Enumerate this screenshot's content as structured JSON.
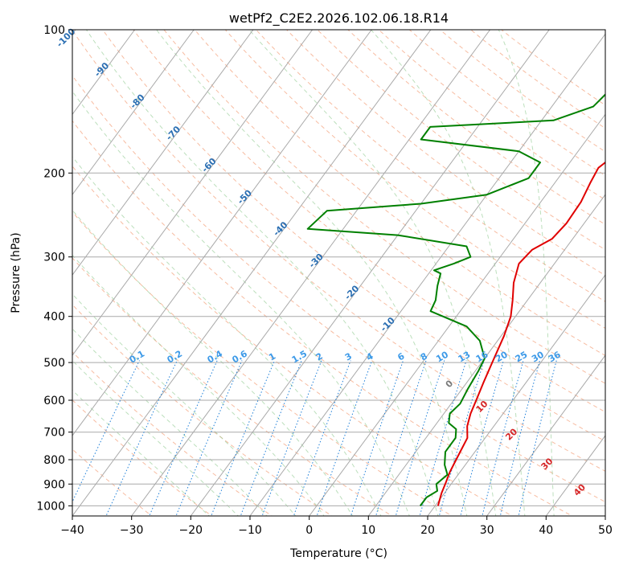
{
  "chart_data": {
    "type": "line",
    "title": "wetPf2_C2E2.2026.102.06.18.R14",
    "xlabel": "Temperature (°C)",
    "ylabel": "Pressure (hPa)",
    "xlim": [
      -40,
      50
    ],
    "ylim": [
      1050,
      100
    ],
    "y_scale": "log",
    "grid": true,
    "x_ticks": [
      -40,
      -30,
      -20,
      -10,
      0,
      10,
      20,
      30,
      40,
      50
    ],
    "y_ticks": [
      1000,
      900,
      800,
      700,
      600,
      500,
      400,
      300,
      200,
      100
    ],
    "series": [
      {
        "color": "#e00000",
        "points": [
          [
            20.5,
            1000
          ],
          [
            20.0,
            970
          ],
          [
            19.5,
            940
          ],
          [
            19.0,
            900
          ],
          [
            18.3,
            850
          ],
          [
            17.8,
            800
          ],
          [
            17.0,
            720
          ],
          [
            15.5,
            680
          ],
          [
            14.5,
            640
          ],
          [
            13.8,
            600
          ],
          [
            12.8,
            550
          ],
          [
            11.8,
            500
          ],
          [
            10.5,
            440
          ],
          [
            9.2,
            400
          ],
          [
            7.5,
            370
          ],
          [
            5.5,
            340
          ],
          [
            4.0,
            310
          ],
          [
            4.5,
            290
          ],
          [
            6.5,
            275
          ],
          [
            7.0,
            255
          ],
          [
            6.8,
            230
          ],
          [
            6.0,
            210
          ],
          [
            5.5,
            195
          ],
          [
            6.5,
            185
          ],
          [
            8.5,
            175
          ],
          [
            11.5,
            165
          ],
          [
            12.0,
            150
          ],
          [
            12.5,
            135
          ],
          [
            14.5,
            120
          ],
          [
            16.0,
            110
          ],
          [
            17.0,
            105
          ],
          [
            18.0,
            100
          ]
        ]
      },
      {
        "color": "#008000",
        "points": [
          [
            17.5,
            1000
          ],
          [
            17.5,
            960
          ],
          [
            18.5,
            930
          ],
          [
            17.5,
            900
          ],
          [
            18.2,
            860
          ],
          [
            16.5,
            820
          ],
          [
            15.0,
            770
          ],
          [
            15.0,
            720
          ],
          [
            14.0,
            690
          ],
          [
            12.0,
            670
          ],
          [
            11.0,
            640
          ],
          [
            11.5,
            610
          ],
          [
            11.0,
            570
          ],
          [
            10.5,
            520
          ],
          [
            10.0,
            490
          ],
          [
            7.0,
            450
          ],
          [
            3.0,
            420
          ],
          [
            -5.0,
            390
          ],
          [
            -5.5,
            370
          ],
          [
            -7.0,
            345
          ],
          [
            -8.0,
            325
          ],
          [
            -9.5,
            320
          ],
          [
            -7.0,
            310
          ],
          [
            -5.0,
            300
          ],
          [
            -7.0,
            285
          ],
          [
            -20.0,
            270
          ],
          [
            -36.0,
            262
          ],
          [
            -35.0,
            240
          ],
          [
            -20.0,
            232
          ],
          [
            -10.0,
            222
          ],
          [
            -5.0,
            205
          ],
          [
            -5.0,
            190
          ],
          [
            -10.0,
            180
          ],
          [
            -28.0,
            170
          ],
          [
            -28.0,
            160
          ],
          [
            -8.0,
            155
          ],
          [
            -3.0,
            145
          ],
          [
            -2.0,
            130
          ],
          [
            -2.5,
            118
          ],
          [
            -2.8,
            112
          ],
          [
            -1.0,
            106
          ],
          [
            1.0,
            100
          ]
        ]
      }
    ],
    "isotherm_labels": [
      "-100",
      "-90",
      "-80",
      "-70",
      "-60",
      "-50",
      "-40",
      "-30",
      "-20",
      "-10"
    ],
    "mixing_ratio_labels": [
      "0.1",
      "0.2",
      "0.4",
      "0.6",
      "1",
      "1.5",
      "2",
      "3",
      "4",
      "6",
      "8",
      "10",
      "13",
      "16",
      "20",
      "25",
      "30",
      "36"
    ],
    "dry_adiabat_labels": [
      "0",
      "10",
      "20",
      "30",
      "40"
    ]
  }
}
